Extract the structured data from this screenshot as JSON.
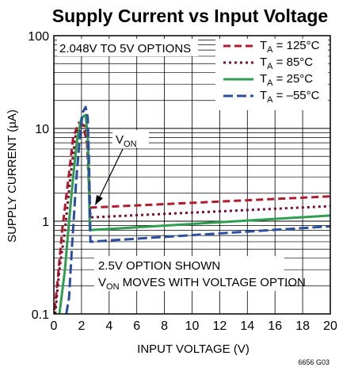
{
  "chart_data": {
    "type": "line",
    "title": "Supply Current vs Input Voltage",
    "xlabel": "INPUT VOLTAGE (V)",
    "ylabel": "SUPPLY CURRENT (µA)",
    "xlim": [
      0,
      20
    ],
    "ylim": [
      0.1,
      100
    ],
    "yscale": "log",
    "grid": true,
    "legend_position": "top-right",
    "x_ticks": [
      "0",
      "2",
      "4",
      "6",
      "8",
      "10",
      "12",
      "14",
      "16",
      "18",
      "20"
    ],
    "y_ticks": [
      "0.1",
      "1",
      "10",
      "100"
    ],
    "annotations": {
      "options_label": "2.048V TO 5V OPTIONS",
      "von_label": "V",
      "von_sub": "ON",
      "shown_label": "2.5V OPTION SHOWN",
      "moves_prefix": "V",
      "moves_sub": "ON",
      "moves_suffix": " MOVES WITH VOLTAGE OPTION"
    },
    "figure_code": "6656 G03",
    "series": [
      {
        "name": "TA = 125°C",
        "name_main": "T",
        "name_sub": "A",
        "name_rest": " = 125°C",
        "color": "#b01c2e",
        "dash": "dashed",
        "x": [
          0.05,
          0.3,
          0.6,
          1.0,
          1.4,
          1.8,
          2.1,
          2.4,
          2.6,
          20
        ],
        "y": [
          0.11,
          0.25,
          0.8,
          2.5,
          8,
          11.5,
          11,
          7,
          1.4,
          1.85
        ]
      },
      {
        "name": "TA = 85°C",
        "name_main": "T",
        "name_sub": "A",
        "name_rest": " = 85°C",
        "color": "#7a1030",
        "dash": "dotted",
        "x": [
          0.1,
          0.4,
          0.8,
          1.2,
          1.6,
          2.0,
          2.3,
          2.5,
          2.65,
          20
        ],
        "y": [
          0.1,
          0.3,
          0.8,
          3,
          9,
          11,
          10.5,
          5,
          1.1,
          1.45
        ]
      },
      {
        "name": "TA = 25°C",
        "name_main": "T",
        "name_sub": "A",
        "name_rest": " = 25°C",
        "color": "#2e9e4f",
        "dash": "solid",
        "x": [
          0.4,
          0.8,
          1.1,
          1.4,
          1.7,
          2.0,
          2.3,
          2.45,
          2.55,
          2.6,
          20
        ],
        "y": [
          0.1,
          0.3,
          1,
          3,
          8,
          13,
          14,
          8,
          2,
          0.8,
          1.15
        ]
      },
      {
        "name": "TA = –55°C",
        "name_main": "T",
        "name_sub": "A",
        "name_rest": " = –55°C",
        "color": "#2a4fa0",
        "dash": "longdash",
        "x": [
          0.9,
          1.1,
          1.3,
          1.6,
          1.9,
          2.1,
          2.3,
          2.45,
          2.55,
          2.65,
          4,
          20
        ],
        "y": [
          0.1,
          0.15,
          0.5,
          2.5,
          9,
          15,
          17,
          13,
          4,
          0.6,
          0.62,
          0.88
        ]
      }
    ]
  }
}
